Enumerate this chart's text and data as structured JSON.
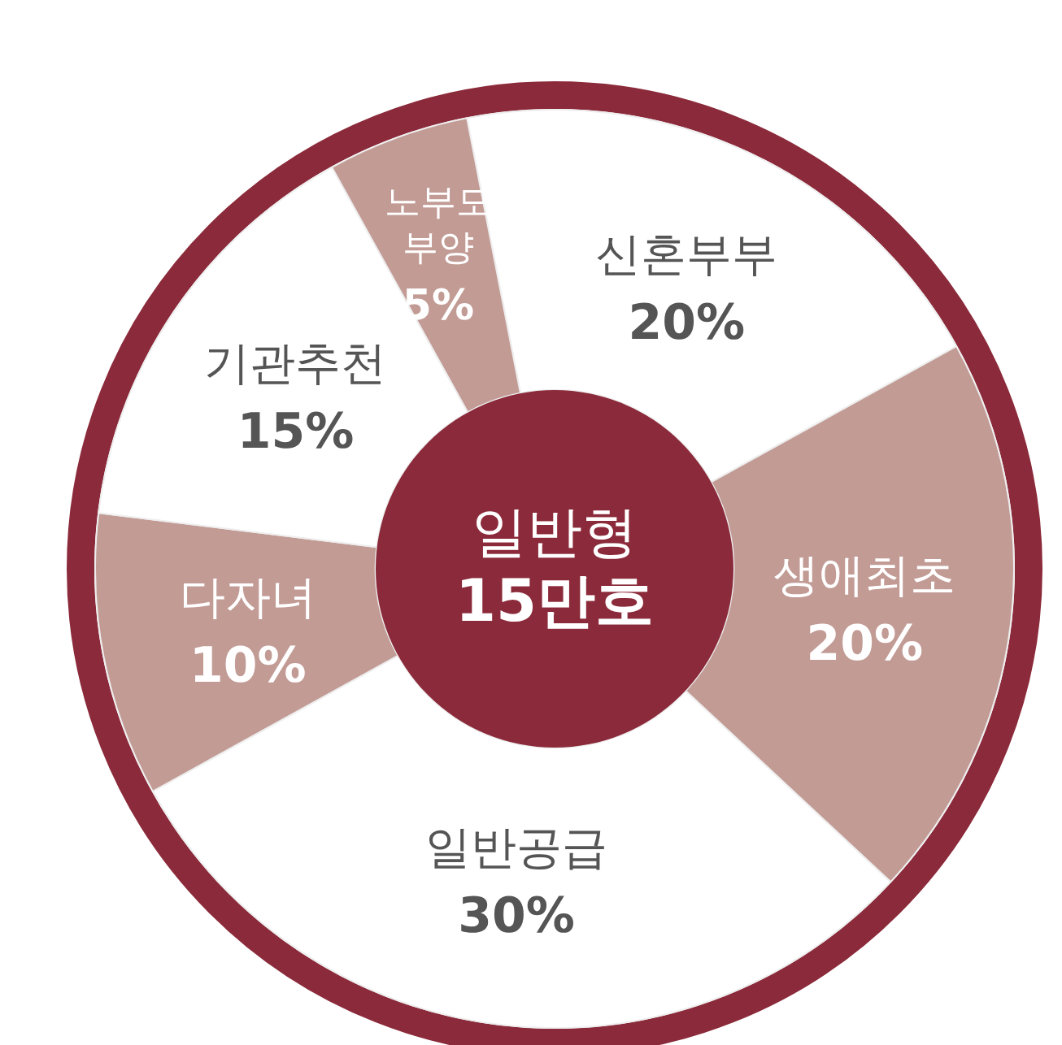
{
  "chart_data": {
    "type": "donut",
    "title": "일반형",
    "subtitle": "15만호",
    "categories": [
      "신혼부부",
      "생애최초",
      "일반공급",
      "다자녀",
      "기관추천",
      "노부모부양"
    ],
    "values": [
      20,
      20,
      30,
      10,
      15,
      5
    ],
    "colors": [
      "#ffffff",
      "#c29b95",
      "#ffffff",
      "#c29b95",
      "#ffffff",
      "#c29b95"
    ],
    "value_labels": [
      "20%",
      "20%",
      "30%",
      "10%",
      "15%",
      "5%"
    ],
    "legend": false
  }
}
